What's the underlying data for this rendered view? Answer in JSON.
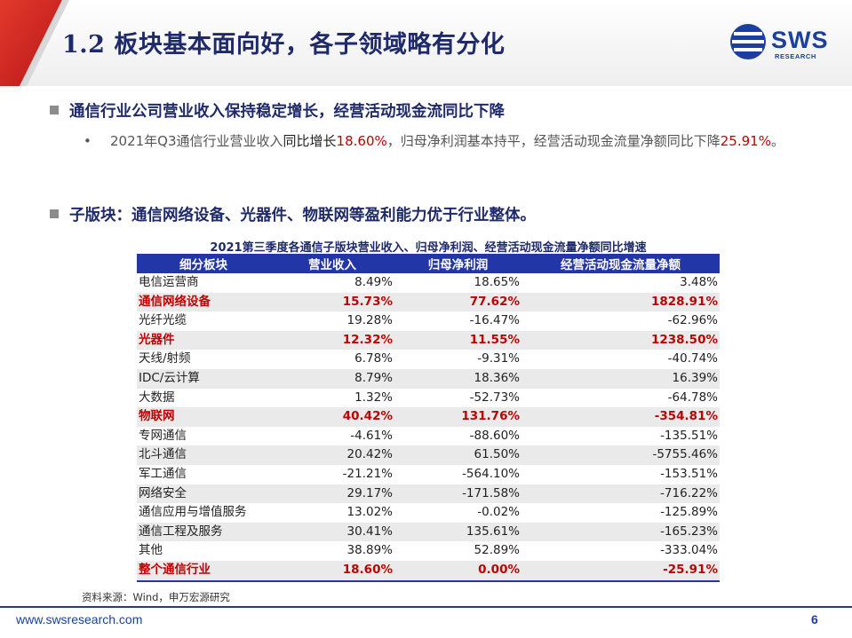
{
  "header": {
    "title": "1.2 板块基本面向好，各子领域略有分化",
    "logo_text": "SWS",
    "logo_sub": "RESEARCH"
  },
  "section1": {
    "heading": "通信行业公司营业收入保持稳定增长，经营活动现金流同比下降",
    "bullet": {
      "dot": "•",
      "p1": "2021年Q3通信行业营业收入",
      "p2": "同比增长",
      "p3": "18.60%",
      "p4": "，归母净利润基本持平，经营活动现金流量净额同比下降",
      "p5": "25.91%",
      "p6": "。"
    }
  },
  "section2": {
    "heading": "子版块：通信网络设备、光器件、物联网等盈利能力优于行业整体。"
  },
  "table": {
    "caption": "2021第三季度各通信子版块营业收入、归母净利润、经营活动现金流量净额同比增速",
    "headers": [
      "细分板块",
      "营业收入",
      "归母净利润",
      "经营活动现金流量净额"
    ],
    "rows": [
      [
        "电信运营商",
        "8.49%",
        "18.65%",
        "3.48%"
      ],
      [
        "通信网络设备",
        "15.73%",
        "77.62%",
        "1828.91%"
      ],
      [
        "光纤光缆",
        "19.28%",
        "-16.47%",
        "-62.96%"
      ],
      [
        "光器件",
        "12.32%",
        "11.55%",
        "1238.50%"
      ],
      [
        "天线/射频",
        "6.78%",
        "-9.31%",
        "-40.74%"
      ],
      [
        "IDC/云计算",
        "8.79%",
        "18.36%",
        "16.39%"
      ],
      [
        "大数据",
        "1.32%",
        "-52.73%",
        "-64.78%"
      ],
      [
        "物联网",
        "40.42%",
        "131.76%",
        "-354.81%"
      ],
      [
        "专网通信",
        "-4.61%",
        "-88.60%",
        "-135.51%"
      ],
      [
        "北斗通信",
        "20.42%",
        "61.50%",
        "-5755.46%"
      ],
      [
        "军工通信",
        "-21.21%",
        "-564.10%",
        "-153.51%"
      ],
      [
        "网络安全",
        "29.17%",
        "-171.58%",
        "-716.22%"
      ],
      [
        "通信应用与增值服务",
        "13.02%",
        "-0.02%",
        "-125.89%"
      ],
      [
        "通信工程及服务",
        "30.41%",
        "135.61%",
        "-165.23%"
      ],
      [
        "其他",
        "38.89%",
        "52.89%",
        "-333.04%"
      ],
      [
        "整个通信行业",
        "18.60%",
        "0.00%",
        "-25.91%"
      ]
    ],
    "highlight_rows": [
      1,
      3,
      7,
      15
    ],
    "highlight_color": "#c00000",
    "header_color": "#2336a8"
  },
  "footer": {
    "source": "资料来源：Wind，申万宏源研究",
    "url": "www.swsresearch.com",
    "page": "6"
  }
}
